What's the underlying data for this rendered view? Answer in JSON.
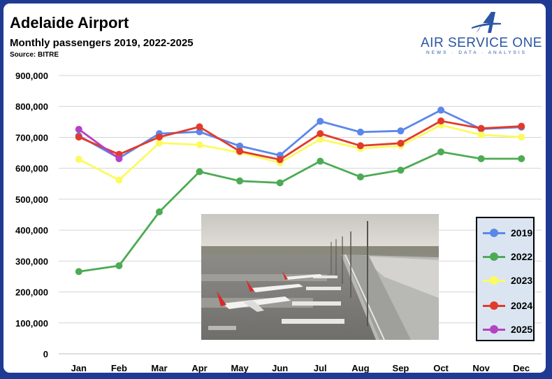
{
  "header": {
    "title": "Adelaide Airport",
    "subtitle": "Monthly passengers 2019, 2022-2025",
    "source": "Source: BITRE"
  },
  "brand": {
    "name": "AIR SERVICE ONE",
    "tagline": "NEWS · DATA · ANALYSIS",
    "color": "#2a56a3"
  },
  "chart_data": {
    "type": "line",
    "title": "Adelaide Airport",
    "subtitle": "Monthly passengers 2019, 2022-2025",
    "xlabel": "",
    "ylabel": "",
    "categories": [
      "Jan",
      "Feb",
      "Mar",
      "Apr",
      "May",
      "Jun",
      "Jul",
      "Aug",
      "Sep",
      "Oct",
      "Nov",
      "Dec"
    ],
    "ylim": [
      0,
      900000
    ],
    "yticks": [
      0,
      100000,
      200000,
      300000,
      400000,
      500000,
      600000,
      700000,
      800000,
      900000
    ],
    "ytick_labels": [
      "0",
      "100,000",
      "200,000",
      "300,000",
      "400,000",
      "500,000",
      "600,000",
      "700,000",
      "800,000",
      "900,000"
    ],
    "grid": true,
    "legend_position": "bottom-right",
    "series": [
      {
        "name": "2019",
        "color": "#5b87e8",
        "values": [
          705000,
          633000,
          712000,
          718000,
          672000,
          642000,
          752000,
          717000,
          721000,
          788000,
          727000,
          733000
        ]
      },
      {
        "name": "2022",
        "color": "#4cab54",
        "values": [
          266000,
          285000,
          459000,
          589000,
          559000,
          553000,
          623000,
          572000,
          594000,
          653000,
          631000,
          631000
        ]
      },
      {
        "name": "2023",
        "color": "#fbfb5f",
        "values": [
          629000,
          562000,
          682000,
          676000,
          651000,
          618000,
          694000,
          664000,
          673000,
          740000,
          708000,
          701000
        ]
      },
      {
        "name": "2024",
        "color": "#e23a2c",
        "values": [
          701000,
          645000,
          701000,
          734000,
          655000,
          628000,
          712000,
          673000,
          681000,
          753000,
          729000,
          736000
        ]
      },
      {
        "name": "2025",
        "color": "#b641c3",
        "values": [
          726000,
          631000,
          null,
          null,
          null,
          null,
          null,
          null,
          null,
          null,
          null,
          null
        ]
      }
    ]
  }
}
